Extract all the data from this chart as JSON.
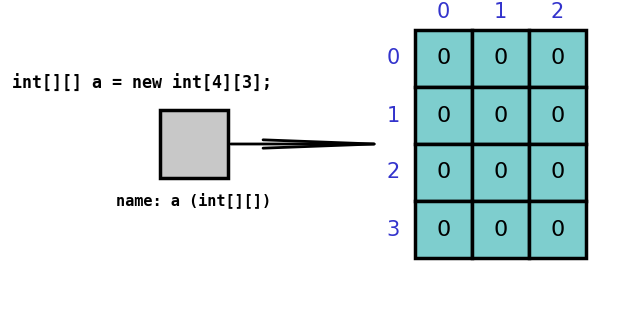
{
  "title_code": "int[][] a = new int[4][3];",
  "name_label": "name: a (int[][])",
  "rows": 4,
  "cols": 3,
  "cell_value": "0",
  "cyan_color": "#7ECECE",
  "cyan_edge": "#000000",
  "gray_box_color": "#C8C8C8",
  "gray_box_edge": "#000000",
  "row_labels": [
    "0",
    "1",
    "2",
    "3"
  ],
  "col_labels": [
    "0",
    "1",
    "2"
  ],
  "index_color": "#3333CC",
  "code_color": "#000000",
  "arrow_color": "#000000",
  "bg_color": "#FFFFFF",
  "cell_fontsize": 16,
  "label_fontsize": 15,
  "code_fontsize": 12,
  "name_fontsize": 11
}
